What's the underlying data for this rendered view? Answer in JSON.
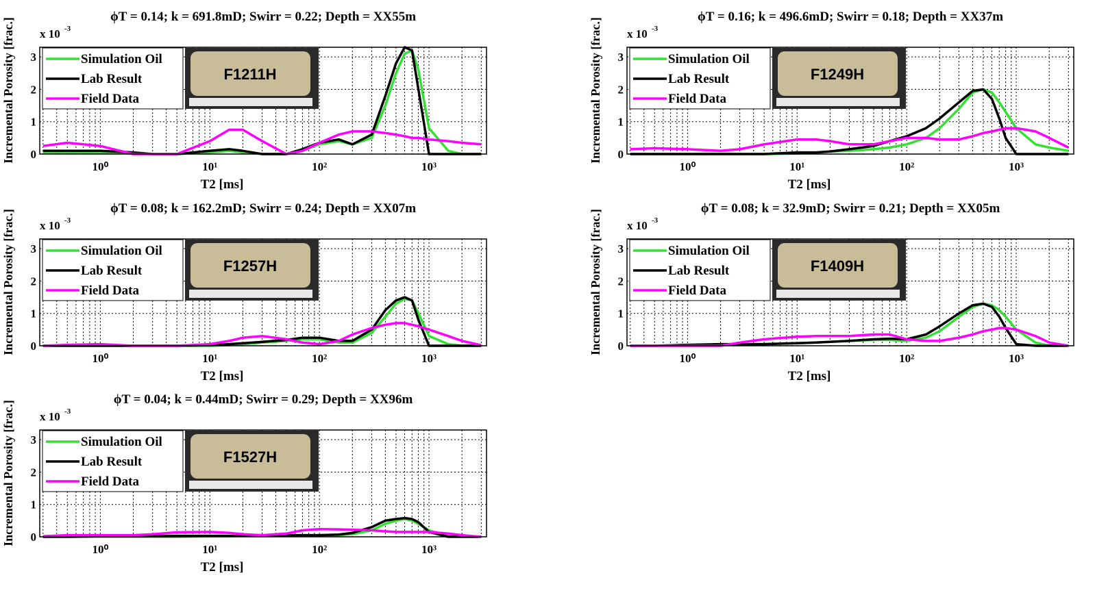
{
  "chart_data": [
    {
      "type": "line",
      "title": "ϕT = 0.14; k = 691.8mD; Swirr = 0.22; Depth = XX55m",
      "x_label": "T2 [ms]",
      "y_label": "Incremental Porosity [frac.]",
      "y_multiplier": "x 10",
      "y_multiplier_exp": "-3",
      "core_label": "F1211H",
      "xscale": "log",
      "grid": true,
      "legend": "upper left",
      "xlim": [
        0.28,
        3350
      ],
      "ylim": [
        0,
        3.3
      ],
      "yticks": [
        0,
        1,
        2,
        3
      ],
      "xticks": [
        {
          "value": 1,
          "label": "10⁰"
        },
        {
          "value": 10,
          "label": "10¹"
        },
        {
          "value": 100,
          "label": "10²"
        },
        {
          "value": 1000,
          "label": "10³"
        }
      ],
      "x": [
        0.3,
        0.5,
        1,
        2,
        3,
        5,
        10,
        15,
        20,
        30,
        50,
        70,
        100,
        150,
        200,
        300,
        400,
        500,
        600,
        700,
        800,
        1000,
        1500,
        2000,
        3000
      ],
      "series": [
        {
          "name": "Simulation Oil",
          "color": "#33e033",
          "values": [
            0.05,
            0.05,
            0.05,
            0.02,
            0,
            0,
            0.05,
            0.1,
            0.05,
            0,
            0,
            0.1,
            0.3,
            0.4,
            0.3,
            0.5,
            1.5,
            2.5,
            3.1,
            3.2,
            2.6,
            0.8,
            0.1,
            0,
            0
          ]
        },
        {
          "name": "Lab Result",
          "color": "#000000",
          "values": [
            0.1,
            0.1,
            0.1,
            0.05,
            0,
            0,
            0.1,
            0.15,
            0.1,
            0,
            0,
            0.15,
            0.35,
            0.45,
            0.3,
            0.6,
            1.8,
            2.8,
            3.3,
            3.2,
            2.0,
            0,
            0,
            0,
            0
          ]
        },
        {
          "name": "Field Data",
          "color": "#ff00ff",
          "values": [
            0.25,
            0.35,
            0.25,
            0,
            0,
            0,
            0.4,
            0.75,
            0.75,
            0.4,
            0,
            0.1,
            0.35,
            0.6,
            0.7,
            0.7,
            0.65,
            0.6,
            0.55,
            0.5,
            0.5,
            0.45,
            0.4,
            0.35,
            0.3
          ]
        }
      ]
    },
    {
      "type": "line",
      "title": "ϕT = 0.16; k = 496.6mD; Swirr = 0.18; Depth = XX37m",
      "x_label": "T2 [ms]",
      "y_label": "Incremental Porosity [frac.]",
      "y_multiplier": "x 10",
      "y_multiplier_exp": "-3",
      "core_label": "F1249H",
      "xscale": "log",
      "grid": true,
      "legend": "upper left",
      "xlim": [
        0.28,
        3350
      ],
      "ylim": [
        0,
        3.3
      ],
      "yticks": [
        0,
        1,
        2,
        3
      ],
      "xticks": [
        {
          "value": 1,
          "label": "10⁰"
        },
        {
          "value": 10,
          "label": "10¹"
        },
        {
          "value": 100,
          "label": "10²"
        },
        {
          "value": 1000,
          "label": "10³"
        }
      ],
      "x": [
        0.3,
        0.5,
        1,
        2,
        3,
        5,
        10,
        15,
        20,
        30,
        50,
        70,
        100,
        150,
        200,
        300,
        400,
        500,
        600,
        700,
        800,
        1000,
        1500,
        2000,
        3000
      ],
      "series": [
        {
          "name": "Simulation Oil",
          "color": "#33e033",
          "values": [
            0,
            0,
            0,
            0,
            0,
            0,
            0.02,
            0.05,
            0.08,
            0.1,
            0.15,
            0.2,
            0.3,
            0.5,
            0.8,
            1.4,
            1.9,
            2.0,
            1.9,
            1.6,
            1.3,
            0.8,
            0.3,
            0.2,
            0.1
          ]
        },
        {
          "name": "Lab Result",
          "color": "#000000",
          "values": [
            0,
            0,
            0,
            0,
            0,
            0,
            0.05,
            0.05,
            0.08,
            0.15,
            0.25,
            0.4,
            0.55,
            0.8,
            1.1,
            1.6,
            1.95,
            2.0,
            1.7,
            1.1,
            0.5,
            0,
            0,
            0,
            0
          ]
        },
        {
          "name": "Field Data",
          "color": "#ff00ff",
          "values": [
            0.15,
            0.18,
            0.15,
            0.1,
            0.15,
            0.3,
            0.45,
            0.45,
            0.4,
            0.3,
            0.3,
            0.4,
            0.5,
            0.5,
            0.45,
            0.45,
            0.55,
            0.65,
            0.7,
            0.75,
            0.8,
            0.8,
            0.7,
            0.5,
            0.2
          ]
        }
      ]
    },
    {
      "type": "line",
      "title": "ϕT = 0.08; k = 162.2mD; Swirr = 0.24; Depth = XX07m",
      "x_label": "T2 [ms]",
      "y_label": "Incremental Porosity [frac.]",
      "y_multiplier": "x 10",
      "y_multiplier_exp": "-3",
      "core_label": "F1257H",
      "xscale": "log",
      "grid": true,
      "legend": "upper left",
      "xlim": [
        0.28,
        3350
      ],
      "ylim": [
        0,
        3.3
      ],
      "yticks": [
        0,
        1,
        2,
        3
      ],
      "xticks": [
        {
          "value": 1,
          "label": "10⁰"
        },
        {
          "value": 10,
          "label": "10¹"
        },
        {
          "value": 100,
          "label": "10²"
        },
        {
          "value": 1000,
          "label": "10³"
        }
      ],
      "x": [
        0.3,
        0.5,
        1,
        2,
        3,
        5,
        10,
        15,
        20,
        30,
        50,
        70,
        100,
        150,
        200,
        300,
        400,
        500,
        600,
        700,
        800,
        1000,
        1500,
        2000,
        3000
      ],
      "series": [
        {
          "name": "Simulation Oil",
          "color": "#33e033",
          "values": [
            0,
            0,
            0,
            0,
            0,
            0,
            0,
            0.02,
            0.05,
            0.1,
            0.15,
            0.2,
            0.2,
            0.1,
            0.1,
            0.4,
            0.9,
            1.3,
            1.45,
            1.4,
            1.0,
            0.3,
            0.05,
            0,
            0
          ]
        },
        {
          "name": "Lab Result",
          "color": "#000000",
          "values": [
            0,
            0,
            0,
            0,
            0,
            0,
            0.02,
            0.05,
            0.08,
            0.12,
            0.18,
            0.25,
            0.25,
            0.15,
            0.15,
            0.5,
            1.1,
            1.4,
            1.5,
            1.4,
            0.8,
            0,
            0,
            0,
            0
          ]
        },
        {
          "name": "Field Data",
          "color": "#ff00ff",
          "values": [
            0,
            0.03,
            0.05,
            0,
            0,
            0,
            0.05,
            0.15,
            0.25,
            0.3,
            0.2,
            0.1,
            0.05,
            0.15,
            0.35,
            0.55,
            0.65,
            0.7,
            0.7,
            0.65,
            0.6,
            0.5,
            0.3,
            0.15,
            0.02
          ]
        }
      ]
    },
    {
      "type": "line",
      "title": "ϕT = 0.08; k = 32.9mD; Swirr = 0.21; Depth = XX05m",
      "x_label": "T2 [ms]",
      "y_label": "Incremental Porosity [frac.]",
      "y_multiplier": "x 10",
      "y_multiplier_exp": "-3",
      "core_label": "F1409H",
      "xscale": "log",
      "grid": true,
      "legend": "upper left",
      "xlim": [
        0.28,
        3350
      ],
      "ylim": [
        0,
        3.3
      ],
      "yticks": [
        0,
        1,
        2,
        3
      ],
      "xticks": [
        {
          "value": 1,
          "label": "10⁰"
        },
        {
          "value": 10,
          "label": "10¹"
        },
        {
          "value": 100,
          "label": "10²"
        },
        {
          "value": 1000,
          "label": "10³"
        }
      ],
      "x": [
        0.3,
        0.5,
        1,
        2,
        3,
        5,
        10,
        15,
        20,
        30,
        50,
        70,
        100,
        150,
        200,
        300,
        400,
        500,
        600,
        700,
        800,
        1000,
        1500,
        2000,
        3000
      ],
      "series": [
        {
          "name": "Simulation Oil",
          "color": "#33e033",
          "values": [
            0,
            0,
            0.02,
            0.03,
            0.03,
            0.05,
            0.08,
            0.1,
            0.12,
            0.15,
            0.18,
            0.18,
            0.15,
            0.25,
            0.45,
            0.9,
            1.2,
            1.3,
            1.25,
            1.1,
            0.9,
            0.5,
            0.1,
            0,
            0
          ]
        },
        {
          "name": "Lab Result",
          "color": "#000000",
          "values": [
            0,
            0,
            0.03,
            0.05,
            0.05,
            0.05,
            0.08,
            0.1,
            0.12,
            0.15,
            0.2,
            0.22,
            0.2,
            0.35,
            0.6,
            1.0,
            1.25,
            1.3,
            1.2,
            0.9,
            0.55,
            0.05,
            0,
            0,
            0
          ]
        },
        {
          "name": "Field Data",
          "color": "#ff00ff",
          "values": [
            0,
            0,
            0,
            0,
            0.1,
            0.2,
            0.28,
            0.3,
            0.3,
            0.3,
            0.35,
            0.35,
            0.2,
            0.15,
            0.15,
            0.25,
            0.35,
            0.45,
            0.5,
            0.55,
            0.55,
            0.5,
            0.3,
            0.1,
            0
          ]
        }
      ]
    },
    {
      "type": "line",
      "title": "ϕT = 0.04; k = 0.44mD; Swirr = 0.29; Depth = XX96m",
      "x_label": "T2 [ms]",
      "y_label": "Incremental Porosity [frac.]",
      "y_multiplier": "x 10",
      "y_multiplier_exp": "-3",
      "core_label": "F1527H",
      "xscale": "log",
      "grid": true,
      "legend": "upper left",
      "xlim": [
        0.28,
        3350
      ],
      "ylim": [
        0,
        3.3
      ],
      "yticks": [
        0,
        1,
        2,
        3
      ],
      "xticks": [
        {
          "value": 1,
          "label": "10⁰"
        },
        {
          "value": 10,
          "label": "10¹"
        },
        {
          "value": 100,
          "label": "10²"
        },
        {
          "value": 1000,
          "label": "10³"
        }
      ],
      "x": [
        0.3,
        0.5,
        1,
        2,
        3,
        5,
        10,
        15,
        20,
        30,
        50,
        70,
        100,
        150,
        200,
        300,
        400,
        500,
        600,
        700,
        800,
        1000,
        1500,
        2000,
        3000
      ],
      "series": [
        {
          "name": "Simulation Oil",
          "color": "#33e033",
          "values": [
            0,
            0,
            0,
            0,
            0,
            0,
            0.02,
            0.02,
            0.03,
            0.03,
            0.05,
            0.05,
            0.05,
            0.05,
            0.08,
            0.2,
            0.4,
            0.5,
            0.55,
            0.5,
            0.4,
            0.2,
            0.02,
            0,
            0
          ]
        },
        {
          "name": "Lab Result",
          "color": "#000000",
          "values": [
            0,
            0,
            0.02,
            0.02,
            0.03,
            0.03,
            0.03,
            0.03,
            0.03,
            0.03,
            0.05,
            0.05,
            0.05,
            0.07,
            0.12,
            0.3,
            0.5,
            0.55,
            0.58,
            0.55,
            0.45,
            0.15,
            0,
            0,
            0
          ]
        },
        {
          "name": "Field Data",
          "color": "#ff00ff",
          "values": [
            0.02,
            0.05,
            0.05,
            0.05,
            0.08,
            0.14,
            0.15,
            0.12,
            0.08,
            0.05,
            0.1,
            0.2,
            0.24,
            0.23,
            0.22,
            0.2,
            0.17,
            0.15,
            0.15,
            0.15,
            0.15,
            0.15,
            0.1,
            0.05,
            0
          ]
        }
      ]
    }
  ]
}
